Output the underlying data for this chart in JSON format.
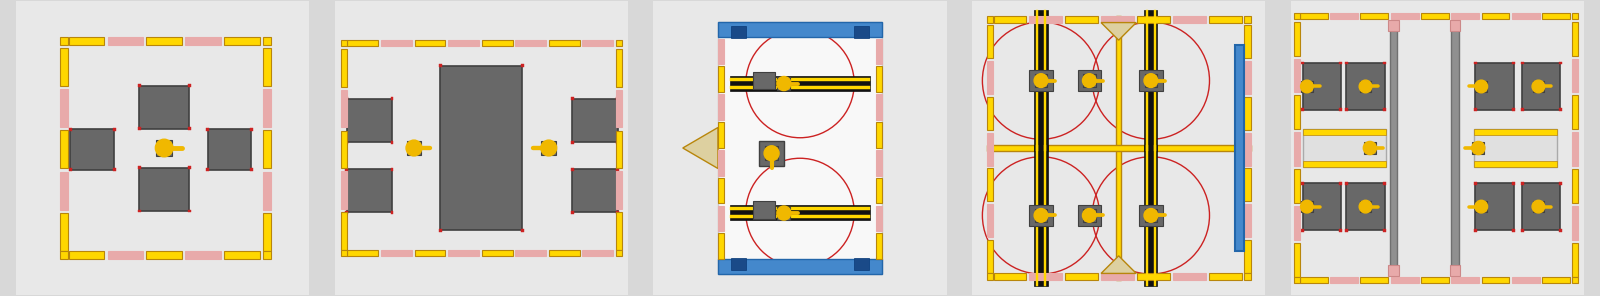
{
  "bg_color": "#d8d8d8",
  "cell_bg": "#e8e8e8",
  "inner_bg": "#f0f0f0",
  "yellow": "#FFD700",
  "dark_yellow": "#B8860B",
  "gray": "#686868",
  "dark_gray": "#404040",
  "red": "#CC2222",
  "pink": "#E8AAAA",
  "blue": "#4488CC",
  "black": "#111111",
  "white": "#f8f8f8",
  "orange_yellow": "#F0B800",
  "light_gray": "#e0e0e0"
}
